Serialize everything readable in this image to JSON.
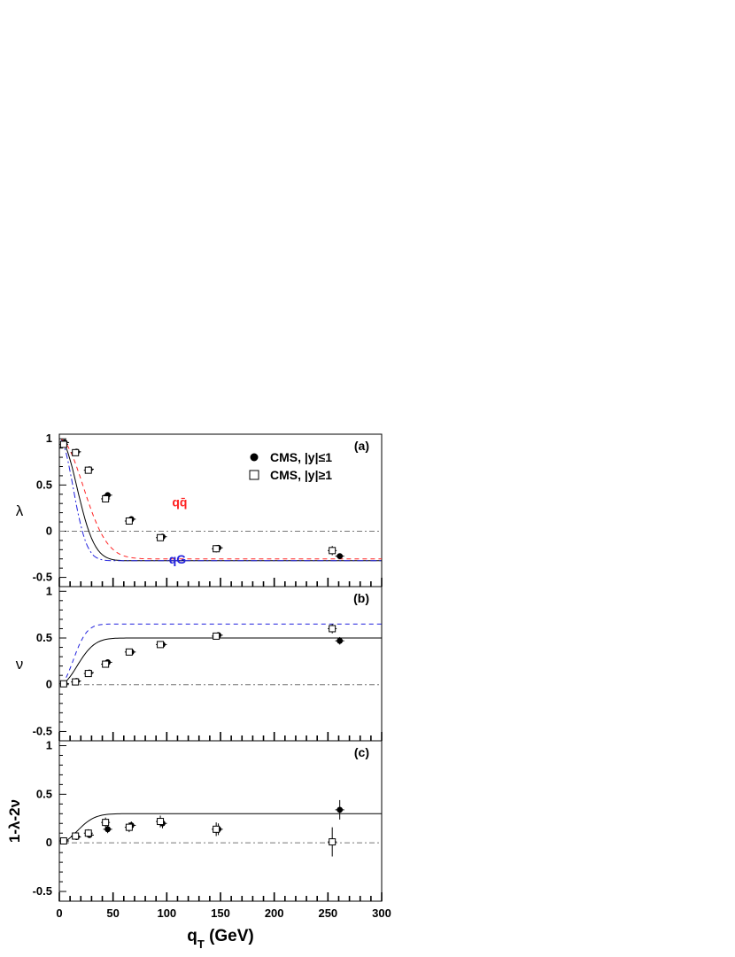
{
  "chart_data": [
    {
      "type": "scatter",
      "panel_tag": "(a)",
      "ylabel": "λ",
      "xlim": [
        0,
        300
      ],
      "ylim": [
        -0.6,
        1.05
      ],
      "yticks": [
        {
          "v": 1,
          "label": "1"
        },
        {
          "v": 0.5,
          "label": "0.5"
        },
        {
          "v": 0,
          "label": "0"
        },
        {
          "v": -0.5,
          "label": "-0.5"
        }
      ],
      "series": [
        {
          "name": "CMS, |y|≤1",
          "marker": "filled-circle",
          "x": [
            5,
            16,
            28,
            45,
            67,
            96,
            148,
            261
          ],
          "y": [
            0.96,
            0.86,
            0.67,
            0.39,
            0.13,
            -0.06,
            -0.18,
            -0.27
          ],
          "err": [
            0.02,
            0.02,
            0.02,
            0.025,
            0.03,
            0.03,
            0.03,
            0.03
          ]
        },
        {
          "name": "CMS, |y|≥1",
          "marker": "open-square",
          "x": [
            4,
            15,
            27,
            43,
            65,
            94,
            146,
            254
          ],
          "y": [
            0.94,
            0.85,
            0.66,
            0.35,
            0.11,
            -0.07,
            -0.19,
            -0.21
          ],
          "err": [
            0.02,
            0.02,
            0.02,
            0.03,
            0.03,
            0.03,
            0.04,
            0.05
          ]
        }
      ],
      "curves": [
        {
          "kind": "fit",
          "color": "#000000",
          "dash": "",
          "form": "lambda",
          "a": -0.32,
          "k": 0.00188
        },
        {
          "kind": "qq",
          "color": "#ff2222",
          "dash": "5,4",
          "form": "lambda",
          "a": -0.3,
          "k": 0.00102
        },
        {
          "kind": "qG",
          "color": "#2222dd",
          "dash": "7,3,2,3",
          "form": "lambda",
          "a": -0.32,
          "k": 0.0031
        }
      ],
      "annotations": [
        {
          "text": "qq̄",
          "x": 112,
          "y": 0.27,
          "color": "#ff2222"
        },
        {
          "text": "qG",
          "x": 110,
          "y": -0.35,
          "color": "#2222dd"
        }
      ]
    },
    {
      "type": "scatter",
      "panel_tag": "(b)",
      "ylabel": "ν",
      "xlim": [
        0,
        300
      ],
      "ylim": [
        -0.6,
        1.05
      ],
      "yticks": [
        {
          "v": 1,
          "label": "1"
        },
        {
          "v": 0.5,
          "label": "0.5"
        },
        {
          "v": 0,
          "label": "0"
        },
        {
          "v": -0.5,
          "label": "-0.5"
        }
      ],
      "series": [
        {
          "name": "CMS, |y|≤1",
          "marker": "filled-circle",
          "x": [
            5,
            16,
            28,
            45,
            67,
            96,
            148,
            261
          ],
          "y": [
            0.01,
            0.04,
            0.13,
            0.24,
            0.35,
            0.43,
            0.53,
            0.47
          ],
          "err": [
            0.01,
            0.015,
            0.02,
            0.02,
            0.02,
            0.02,
            0.03,
            0.04
          ]
        },
        {
          "name": "CMS, |y|≥1",
          "marker": "open-square",
          "x": [
            4,
            15,
            27,
            43,
            65,
            94,
            146,
            254
          ],
          "y": [
            0.01,
            0.03,
            0.12,
            0.22,
            0.35,
            0.43,
            0.52,
            0.6
          ],
          "err": [
            0.01,
            0.015,
            0.02,
            0.02,
            0.02,
            0.02,
            0.03,
            0.05
          ]
        }
      ],
      "curves": [
        {
          "kind": "fit",
          "color": "#000000",
          "dash": "",
          "form": "nu",
          "a": 0.5,
          "k": 0.00188
        },
        {
          "kind": "qG",
          "color": "#2222dd",
          "dash": "5,4",
          "form": "nu",
          "a": 0.65,
          "k": 0.0031
        }
      ],
      "annotations": []
    },
    {
      "type": "scatter",
      "panel_tag": "(c)",
      "ylabel": "1-λ-2ν",
      "xlabel": "q_T (GeV)",
      "xlim": [
        0,
        300
      ],
      "ylim": [
        -0.6,
        1.05
      ],
      "xticks": [
        0,
        50,
        100,
        150,
        200,
        250,
        300
      ],
      "yticks": [
        {
          "v": 1,
          "label": "1"
        },
        {
          "v": 0.5,
          "label": "0.5"
        },
        {
          "v": 0,
          "label": "0"
        },
        {
          "v": -0.5,
          "label": "-0.5"
        }
      ],
      "series": [
        {
          "name": "CMS, |y|≤1",
          "marker": "filled-circle",
          "x": [
            5,
            16,
            28,
            45,
            67,
            96,
            148,
            261
          ],
          "y": [
            0.02,
            0.06,
            0.08,
            0.14,
            0.18,
            0.2,
            0.14,
            0.34
          ],
          "err": [
            0.02,
            0.03,
            0.03,
            0.04,
            0.04,
            0.05,
            0.06,
            0.1
          ]
        },
        {
          "name": "CMS, |y|≥1",
          "marker": "open-square",
          "x": [
            4,
            15,
            27,
            43,
            65,
            94,
            146,
            254
          ],
          "y": [
            0.02,
            0.07,
            0.1,
            0.21,
            0.16,
            0.22,
            0.14,
            0.01
          ],
          "err": [
            0.02,
            0.03,
            0.04,
            0.05,
            0.05,
            0.06,
            0.07,
            0.15
          ]
        }
      ],
      "curves": [
        {
          "kind": "fit",
          "color": "#000000",
          "dash": "",
          "form": "lt",
          "a": 0.3,
          "k": 0.00188
        }
      ],
      "annotations": []
    }
  ],
  "legend": [
    {
      "label": "CMS, |y|≤1",
      "marker": "filled-circle"
    },
    {
      "label": "CMS, |y|≥1",
      "marker": "open-square"
    }
  ]
}
